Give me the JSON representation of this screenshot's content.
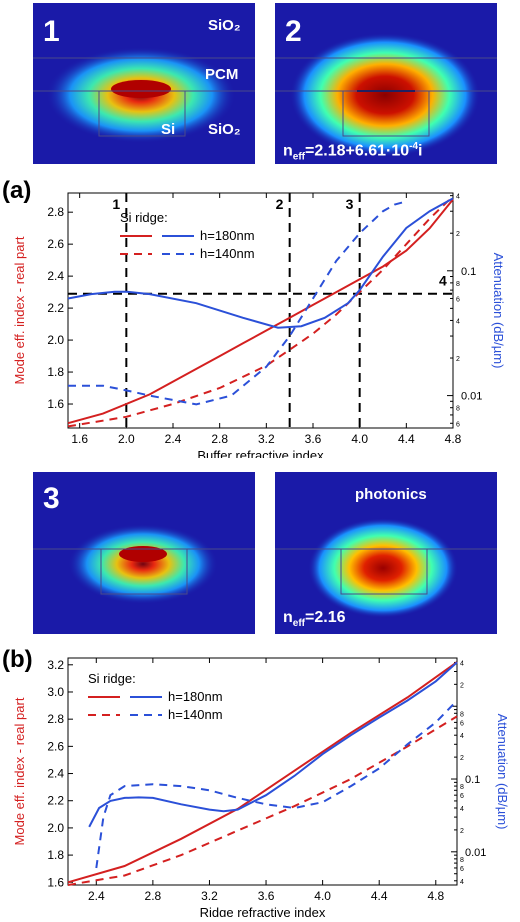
{
  "figure_tags": {
    "a": "(a)",
    "b": "(b)"
  },
  "mode_panels": [
    {
      "id": "1",
      "labels": {
        "top": "SiO₂",
        "mid": "PCM",
        "si": "Si",
        "bottom": "SiO₂"
      },
      "neff": ""
    },
    {
      "id": "2",
      "labels": {},
      "neff": "nₑₒₒ=2.18+6.61·10⁻⁴i"
    },
    {
      "id": "3",
      "labels": {},
      "neff": ""
    },
    {
      "id": "",
      "labels": {
        "top": "photonics"
      },
      "neff": "nₑₒₒ=2.16"
    }
  ],
  "neff_parts": {
    "p2": {
      "main": "n",
      "sub": "eff",
      "val": "=2.18+6.61·10",
      "sup": "-4",
      "tail": "i"
    },
    "p4": {
      "main": "n",
      "sub": "eff",
      "val": "=2.16"
    }
  },
  "colors": {
    "real": "#d42020",
    "atten": "#2b50d8",
    "dash_black": "#000000"
  },
  "chart_data": [
    {
      "type": "line",
      "id": "a",
      "xlabel": "Buffer refractive index",
      "ylabel_left": "Mode eff. index - real part",
      "ylabel_right": "Attenuation (dB/µm)",
      "xlim": [
        1.5,
        4.8
      ],
      "ylim_left": [
        1.45,
        2.92
      ],
      "ylim_right_log": [
        0.0055,
        0.42
      ],
      "xticks": [
        "1.6",
        "2.0",
        "2.4",
        "2.8",
        "3.2",
        "3.6",
        "4.0",
        "4.4",
        "4.8"
      ],
      "yticks_left": [
        "1.6",
        "1.8",
        "2.0",
        "2.2",
        "2.4",
        "2.6",
        "2.8"
      ],
      "yticks_right": [
        "0.01",
        "0.1"
      ],
      "legend": {
        "title": "Si ridge:",
        "entries": [
          "h=180nm",
          "h=140nm"
        ]
      },
      "markers": {
        "vlines": [
          2.0,
          3.4,
          4.0
        ],
        "vlabels": [
          "1",
          "2",
          "3"
        ],
        "hline_label": "4",
        "hline_y": 2.29
      },
      "series": [
        {
          "name": "h=180nm",
          "axis": "left",
          "style": "solid",
          "color": "real",
          "x": [
            1.5,
            1.8,
            2.0,
            2.2,
            2.4,
            2.6,
            2.8,
            3.0,
            3.2,
            3.4,
            3.6,
            3.8,
            4.0,
            4.2,
            4.4,
            4.6,
            4.8
          ],
          "y": [
            1.48,
            1.54,
            1.6,
            1.66,
            1.74,
            1.82,
            1.9,
            1.98,
            2.06,
            2.14,
            2.22,
            2.3,
            2.38,
            2.46,
            2.56,
            2.7,
            2.88
          ]
        },
        {
          "name": "h=140nm",
          "axis": "left",
          "style": "dash",
          "color": "real",
          "x": [
            1.5,
            2.0,
            2.4,
            2.8,
            3.2,
            3.4,
            3.6,
            3.8,
            4.0,
            4.2,
            4.4,
            4.6,
            4.8
          ],
          "y": [
            1.46,
            1.52,
            1.6,
            1.7,
            1.84,
            1.94,
            2.04,
            2.16,
            2.3,
            2.44,
            2.6,
            2.76,
            2.9
          ]
        },
        {
          "name": "h=180nm",
          "axis": "right",
          "style": "solid",
          "color": "atten",
          "x": [
            1.5,
            1.7,
            1.9,
            2.0,
            2.2,
            2.6,
            3.0,
            3.3,
            3.5,
            3.7,
            3.9,
            4.0,
            4.2,
            4.4,
            4.6,
            4.8
          ],
          "y": [
            0.06,
            0.065,
            0.068,
            0.068,
            0.065,
            0.055,
            0.042,
            0.035,
            0.036,
            0.042,
            0.055,
            0.07,
            0.13,
            0.22,
            0.3,
            0.38
          ]
        },
        {
          "name": "h=140nm",
          "axis": "right",
          "style": "dash",
          "color": "atten",
          "x": [
            1.5,
            1.8,
            2.0,
            2.2,
            2.6,
            2.9,
            3.2,
            3.4,
            3.6,
            3.8,
            4.0,
            4.2,
            4.3,
            4.4
          ],
          "y": [
            0.012,
            0.012,
            0.011,
            0.01,
            0.0085,
            0.01,
            0.017,
            0.03,
            0.06,
            0.12,
            0.2,
            0.3,
            0.34,
            0.36
          ]
        }
      ]
    },
    {
      "type": "line",
      "id": "b",
      "xlabel": "Ridge refractive index",
      "ylabel_left": "Mode eff. index - real part",
      "ylabel_right": "Attenuation (dB/µm)",
      "xlim": [
        2.2,
        4.95
      ],
      "ylim_left": [
        1.58,
        3.25
      ],
      "ylim_right_log": [
        0.0035,
        4.6
      ],
      "xticks": [
        "2.4",
        "2.8",
        "3.2",
        "3.6",
        "4.0",
        "4.4",
        "4.8"
      ],
      "yticks_left": [
        "1.6",
        "1.8",
        "2.0",
        "2.2",
        "2.4",
        "2.6",
        "2.8",
        "3.0",
        "3.2"
      ],
      "yticks_right": [
        "0.01",
        "0.1"
      ],
      "legend": {
        "title": "Si ridge:",
        "entries": [
          "h=180nm",
          "h=140nm"
        ]
      },
      "series": [
        {
          "name": "h=180nm",
          "axis": "left",
          "style": "solid",
          "color": "real",
          "x": [
            2.2,
            2.6,
            3.0,
            3.4,
            3.8,
            4.2,
            4.6,
            4.95
          ],
          "y": [
            1.6,
            1.72,
            1.92,
            2.14,
            2.42,
            2.7,
            2.96,
            3.22
          ]
        },
        {
          "name": "h=140nm",
          "axis": "left",
          "style": "dash",
          "color": "real",
          "x": [
            2.2,
            2.6,
            3.0,
            3.4,
            3.8,
            4.2,
            4.6,
            4.95
          ],
          "y": [
            1.58,
            1.65,
            1.8,
            1.98,
            2.16,
            2.36,
            2.6,
            2.82
          ]
        },
        {
          "name": "h=180nm",
          "axis": "right",
          "style": "solid",
          "color": "atten",
          "x": [
            2.35,
            2.42,
            2.5,
            2.6,
            2.7,
            2.8,
            3.0,
            3.2,
            3.3,
            3.4,
            3.6,
            3.8,
            4.0,
            4.2,
            4.4,
            4.6,
            4.8,
            4.95
          ],
          "y": [
            0.022,
            0.04,
            0.05,
            0.055,
            0.056,
            0.055,
            0.045,
            0.038,
            0.036,
            0.038,
            0.06,
            0.11,
            0.22,
            0.4,
            0.7,
            1.2,
            2.2,
            4.0
          ]
        },
        {
          "name": "h=140nm",
          "axis": "right",
          "style": "dash",
          "color": "atten",
          "x": [
            2.4,
            2.45,
            2.5,
            2.6,
            2.8,
            3.0,
            3.2,
            3.4,
            3.6,
            3.8,
            4.0,
            4.2,
            4.4,
            4.6,
            4.8,
            4.95
          ],
          "y": [
            0.006,
            0.03,
            0.06,
            0.08,
            0.085,
            0.08,
            0.07,
            0.055,
            0.045,
            0.04,
            0.048,
            0.08,
            0.14,
            0.3,
            0.6,
            1.2
          ]
        }
      ]
    }
  ]
}
